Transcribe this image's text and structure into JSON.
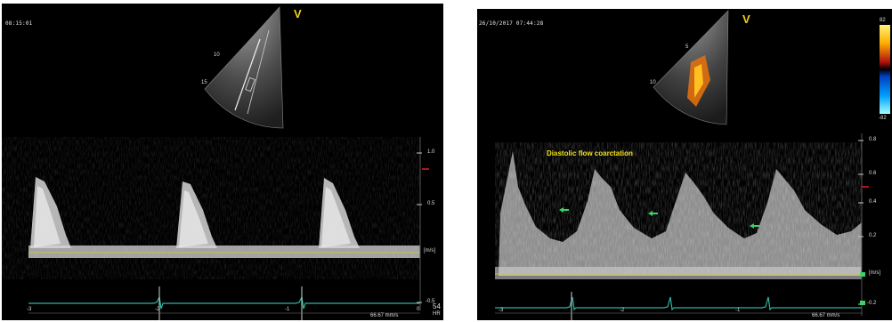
{
  "left_panel": {
    "timestamp": "08:15:01",
    "probe_mark": "V",
    "depth_labels": [
      "10",
      "15"
    ],
    "velocity_scale": [
      "1.0",
      "0.5",
      "[m/s]",
      "-0.5"
    ],
    "time_axis": [
      "-3",
      "-2",
      "-1",
      "0"
    ],
    "heart_rate_value": "54",
    "heart_rate_label": "HR",
    "sweep_speed": "66.67 mm/s"
  },
  "right_panel": {
    "timestamp": "26/10/2017 07:44:28",
    "probe_mark": "V",
    "color_scale_top": "82",
    "color_scale_bottom": "-82",
    "depth_labels": [
      "5",
      "10"
    ],
    "annotation": "Diastolic flow coarctation",
    "velocity_scale": [
      "0.8",
      "0.6",
      "0.4",
      "0.2",
      "[m/s]",
      "-0.2"
    ],
    "time_axis": [
      "-3",
      "-2",
      "-1"
    ],
    "sweep_speed": "66.67 mm/s"
  },
  "colors": {
    "background": "#000000",
    "ecg": "#2fb5a0",
    "baseline": "#c9c24a",
    "label": "#f2d21b"
  }
}
